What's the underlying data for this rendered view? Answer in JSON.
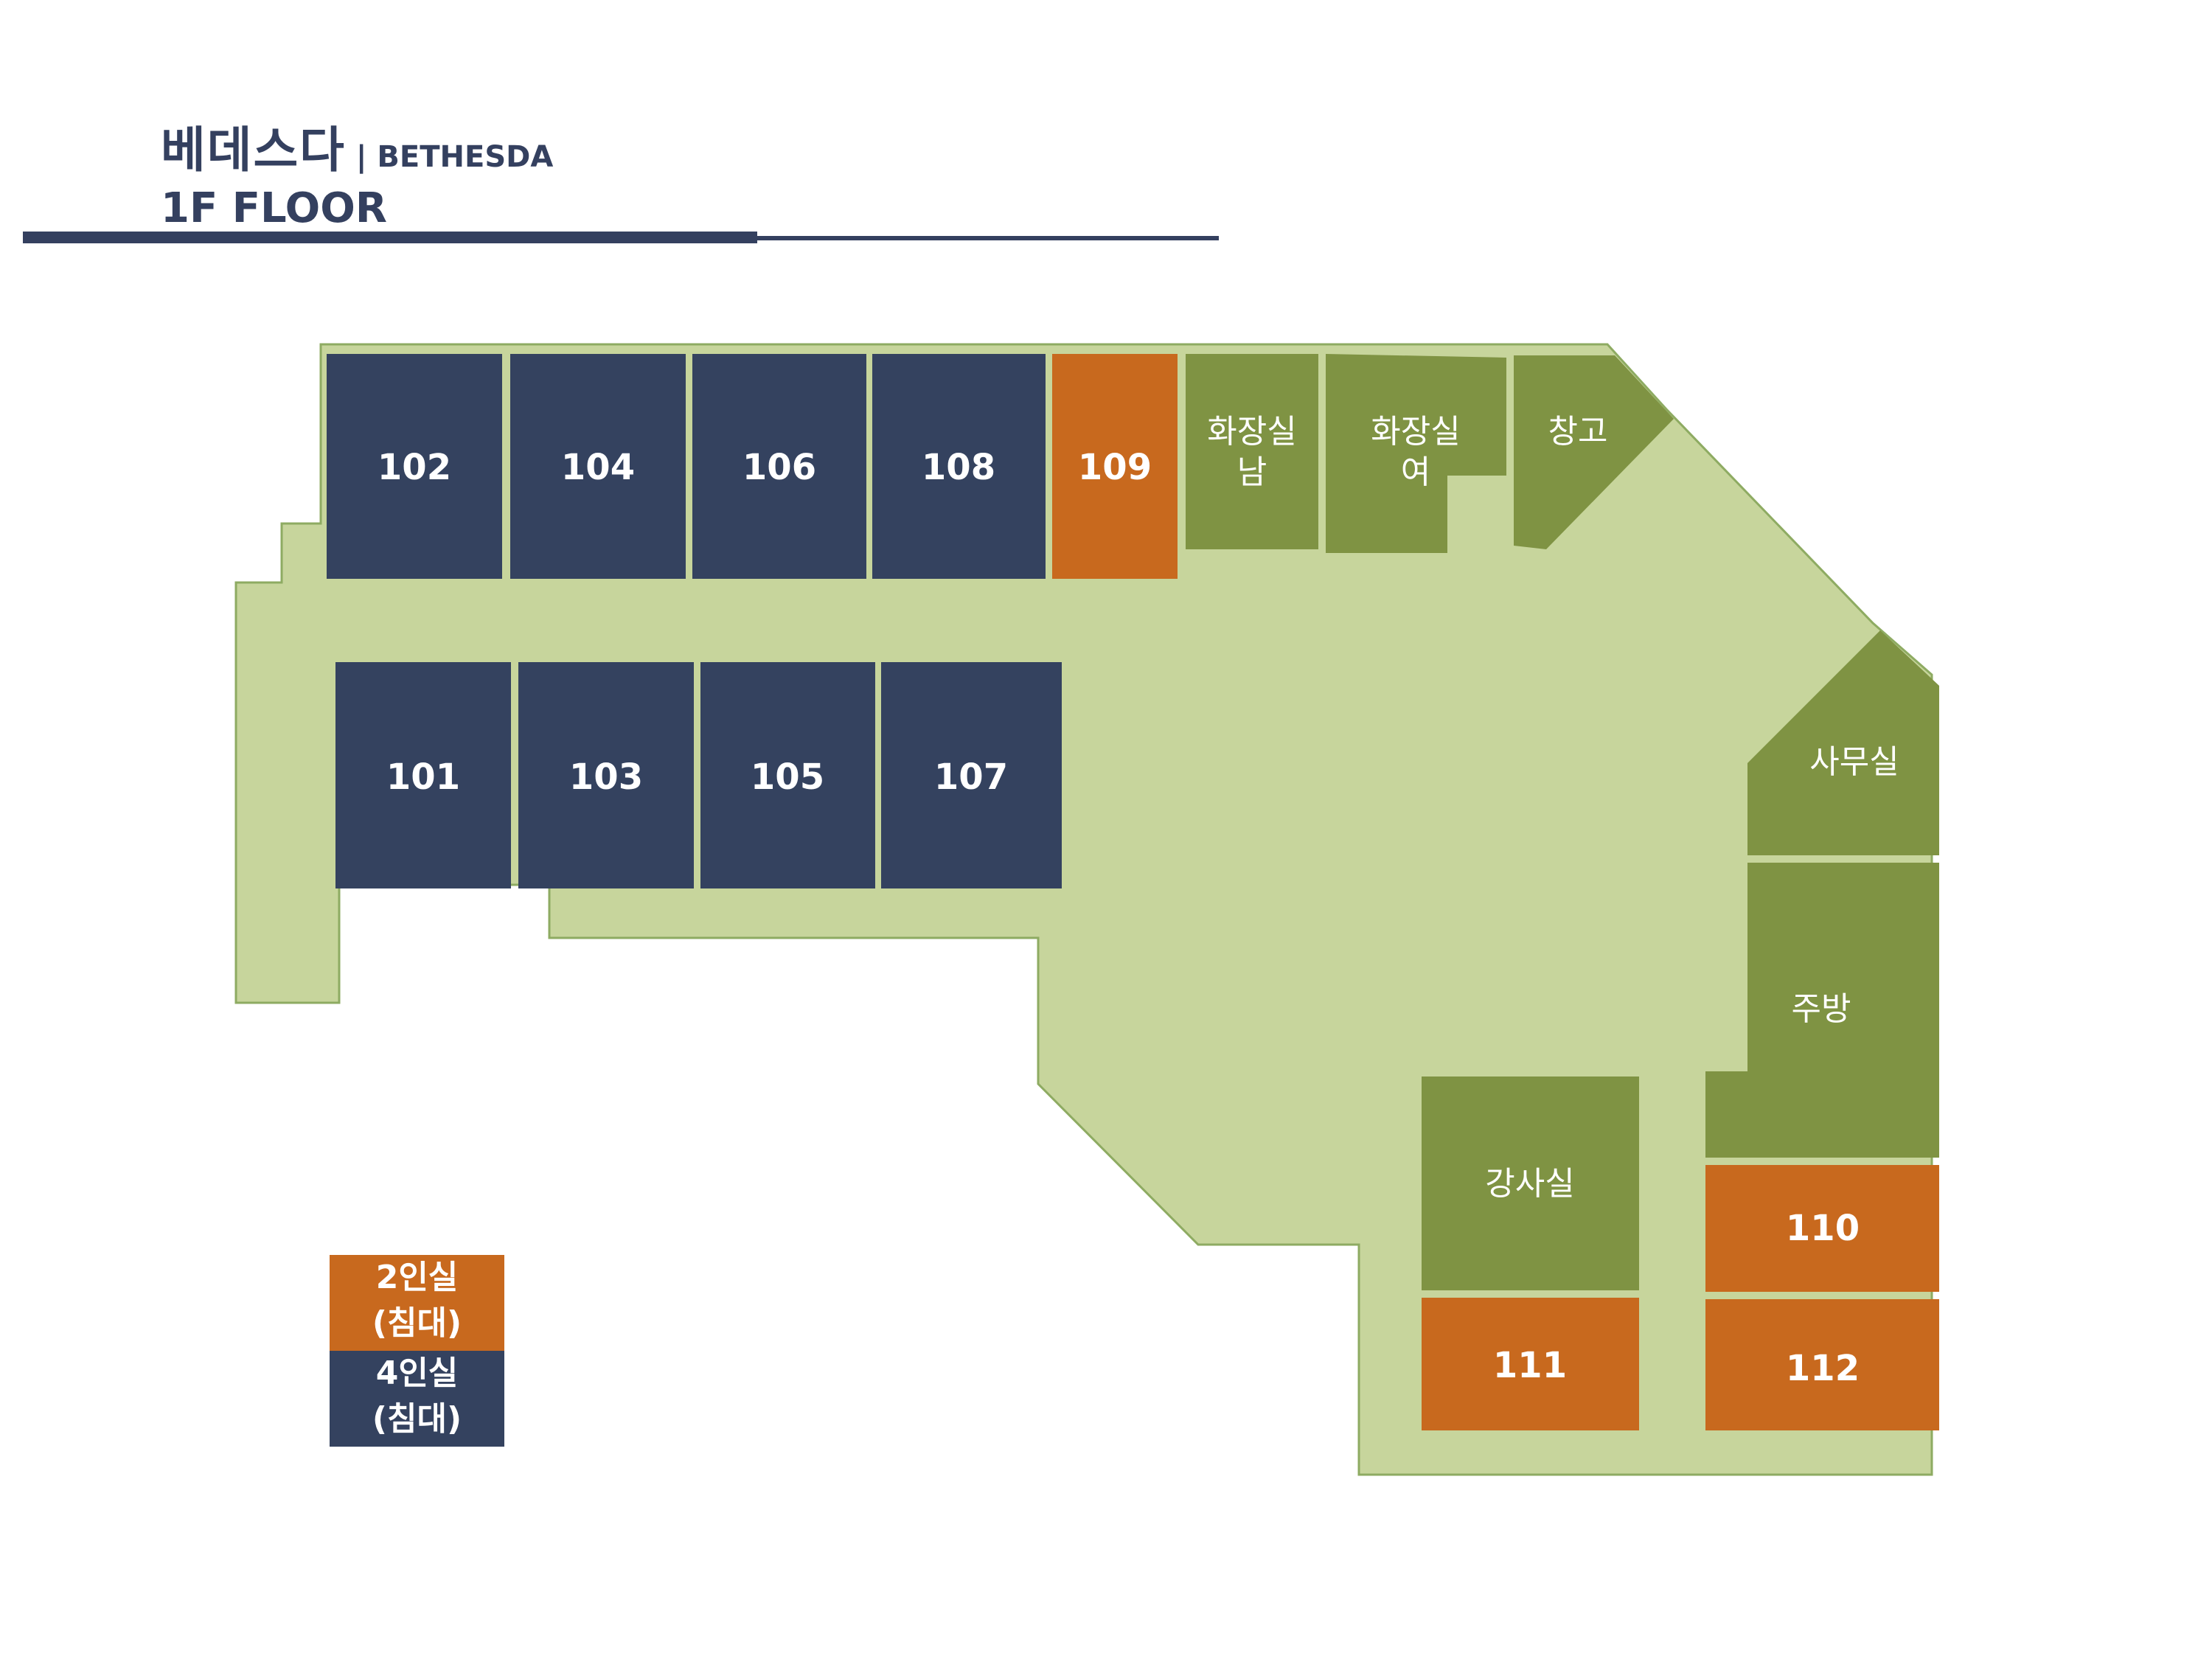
{
  "header": {
    "title_ko": "베데스다",
    "title_en": "| BETHESDA",
    "floor": "1F FLOOR"
  },
  "colors": {
    "accent": "#34405f",
    "two_person": "#c8691e",
    "four_person": "#34425f",
    "facility": "#7f9343",
    "floor": "#c7d59c"
  },
  "rooms": {
    "r101": "101",
    "r102": "102",
    "r103": "103",
    "r104": "104",
    "r105": "105",
    "r106": "106",
    "r107": "107",
    "r108": "108",
    "r109": "109",
    "r110": "110",
    "r111": "111",
    "r112": "112"
  },
  "facilities": {
    "restroom_men_line1": "화장실",
    "restroom_men_line2": "남",
    "restroom_women_line1": "화장실",
    "restroom_women_line2": "여",
    "storage": "창고",
    "office": "사무실",
    "kitchen": "주방",
    "lecture_room": "강사실"
  },
  "legend": {
    "two_person_line1": "2인실",
    "two_person_line2": "(침대)",
    "four_person_line1": "4인실",
    "four_person_line2": "(침대)"
  }
}
